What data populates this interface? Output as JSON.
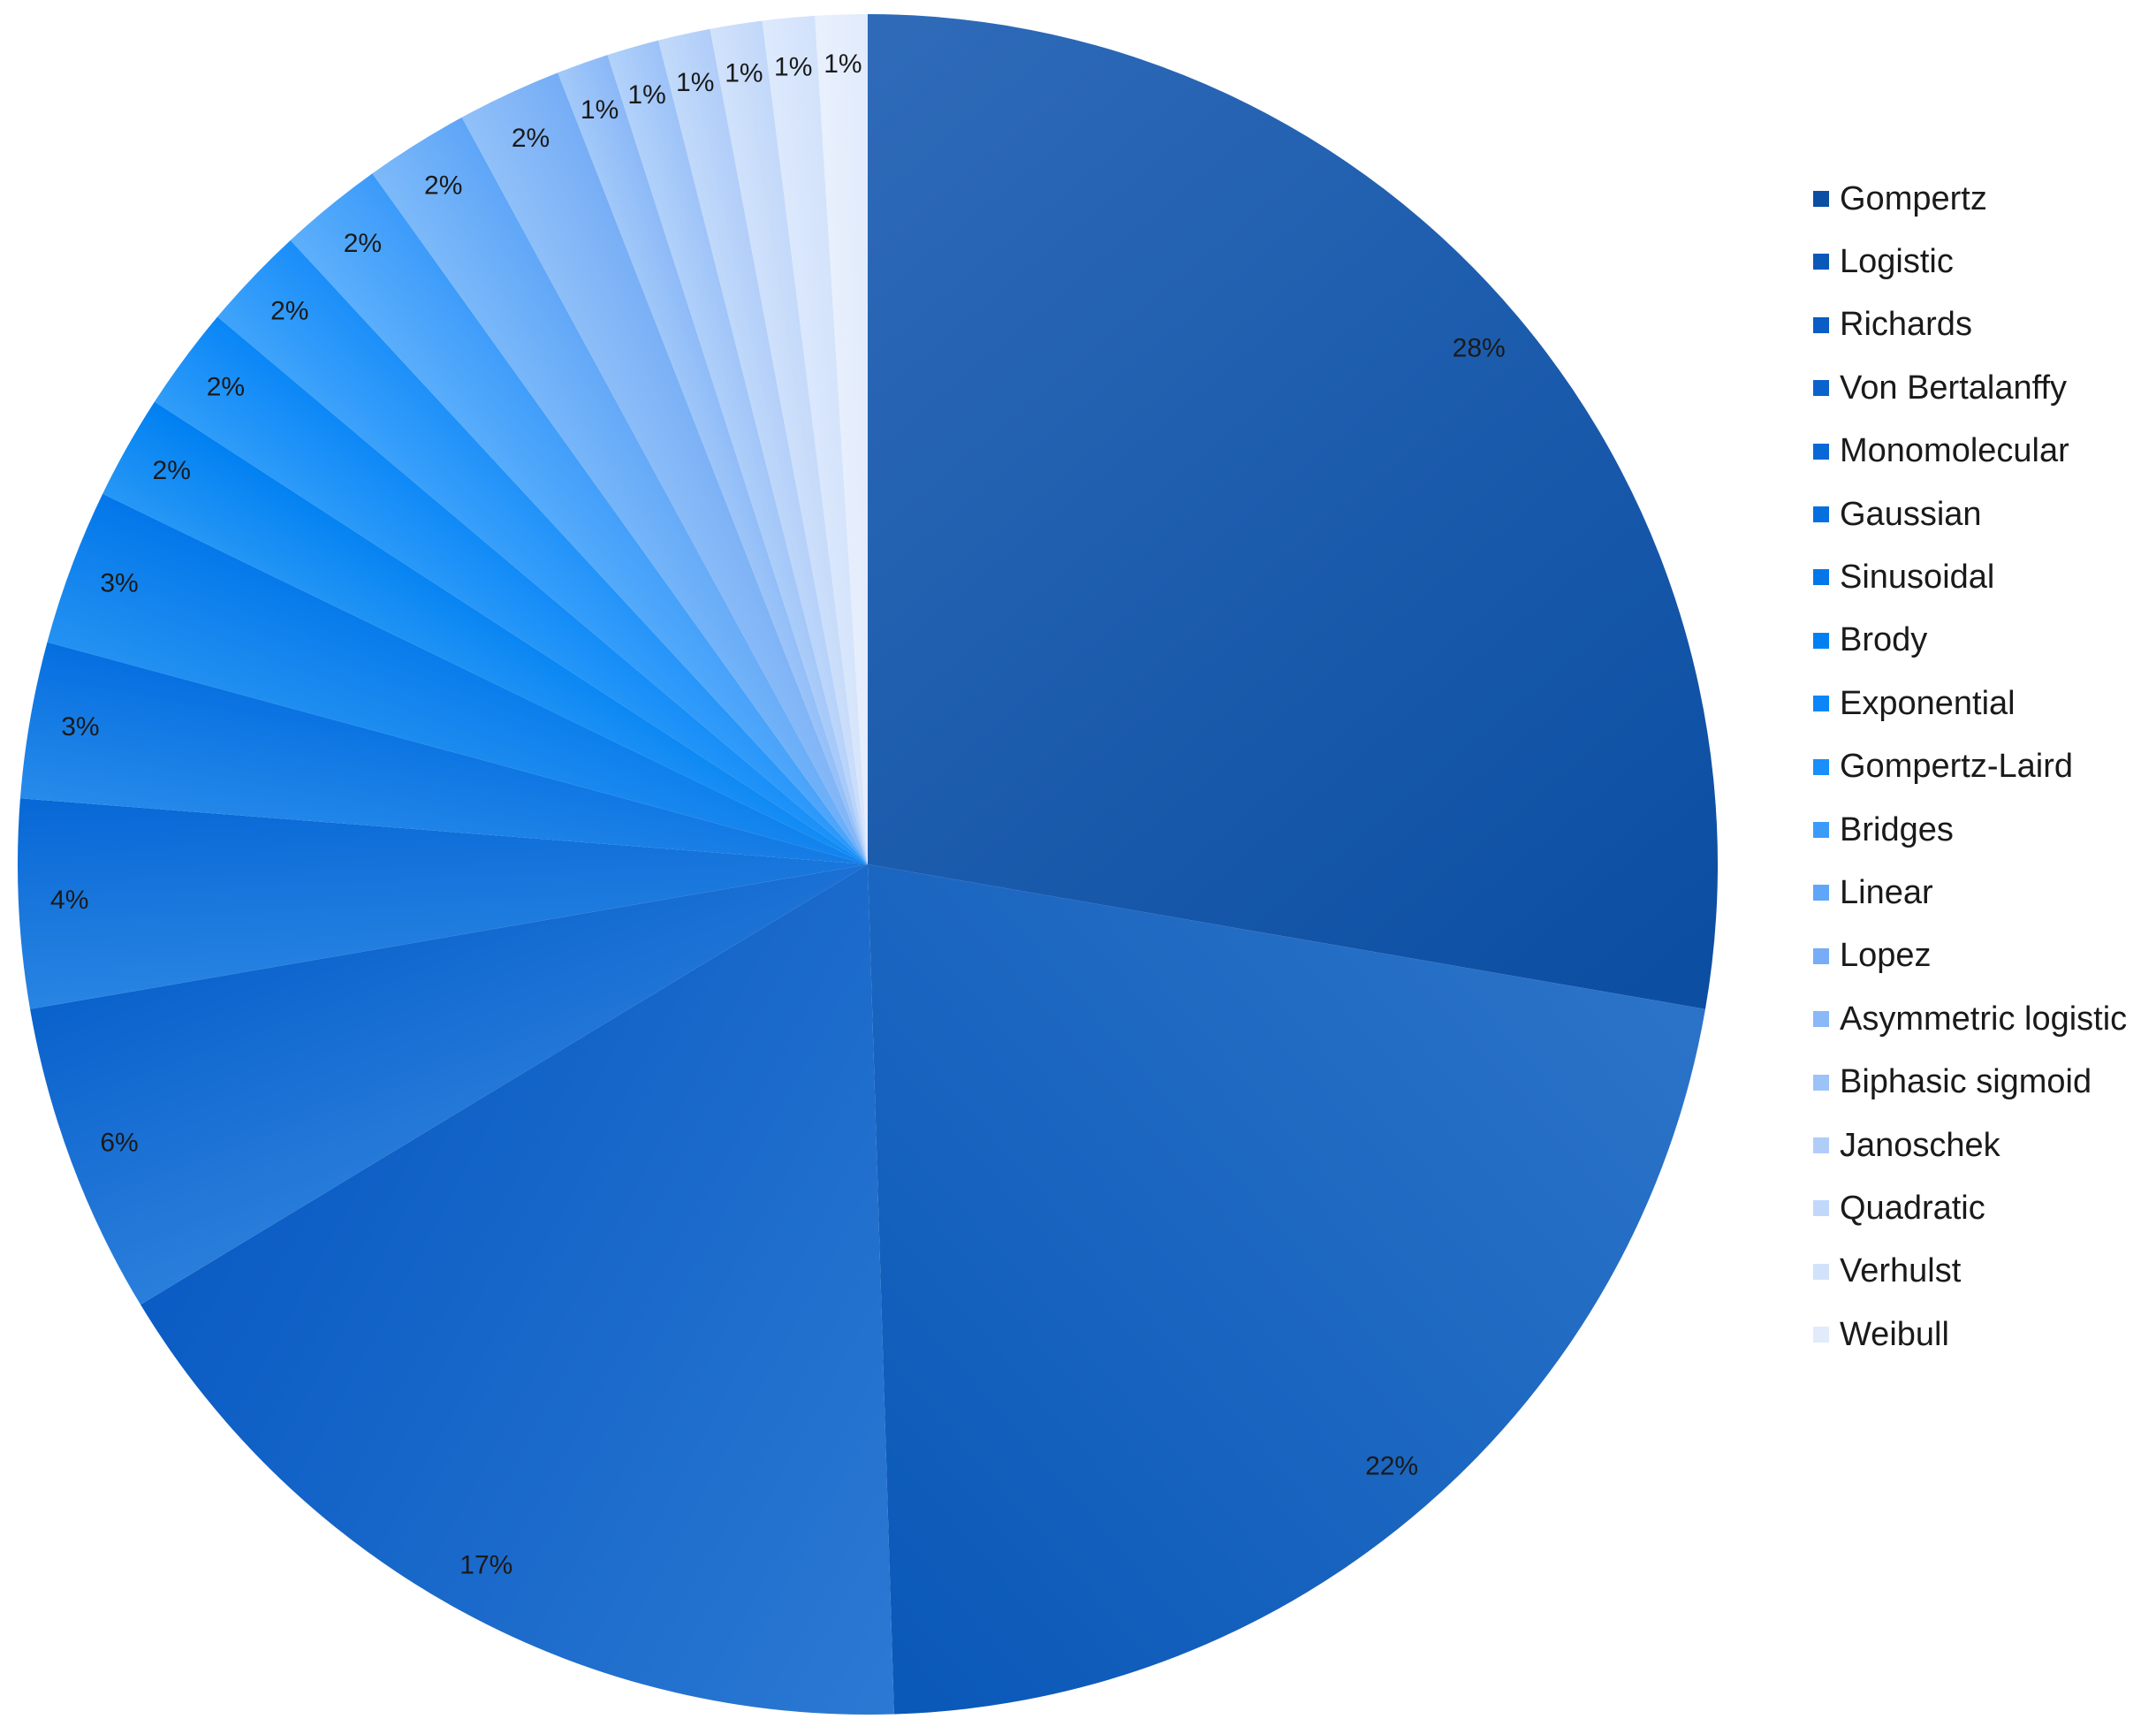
{
  "chart_data": {
    "type": "pie",
    "title": "",
    "categories": [
      "Gompertz",
      "Logistic",
      "Richards",
      "Von Bertalanffy",
      "Monomolecular",
      "Gaussian",
      "Sinusoidal",
      "Brody",
      "Exponential",
      "Gompertz-Laird",
      "Bridges",
      "Linear",
      "Lopez",
      "Asymmetric logistic",
      "Biphasic sigmoid",
      "Janoschek",
      "Quadratic",
      "Verhulst",
      "Weibull"
    ],
    "values": [
      28,
      22,
      17,
      6,
      4,
      3,
      3,
      2,
      2,
      2,
      2,
      2,
      2,
      1,
      1,
      1,
      1,
      1,
      1
    ],
    "data_labels": [
      "28%",
      "22%",
      "17%",
      "6%",
      "4%",
      "3%",
      "3%",
      "2%",
      "2%",
      "2%",
      "2%",
      "2%",
      "2%",
      "1%",
      "1%",
      "1%",
      "1%",
      "1%",
      "1%"
    ],
    "start_angle_deg": 0,
    "direction": "clockwise",
    "legend_position": "right",
    "colors": [
      "#0b4ea2",
      "#0a58b8",
      "#0b5cc4",
      "#0a62cc",
      "#0868d6",
      "#066fe0",
      "#0377ea",
      "#0080f2",
      "#0a86f7",
      "#1a8ef9",
      "#3c9bfa",
      "#5fa6f8",
      "#76adf6",
      "#8bb8f7",
      "#9dc2f8",
      "#b0cdf9",
      "#c2d8fa",
      "#d2e2fb",
      "#e1ebfc"
    ],
    "edge_colors": [
      "#2e6ab8",
      "#2b73c8",
      "#2a78d2",
      "#2a7edb",
      "#2884e2",
      "#268aea",
      "#2391f1",
      "#2697f5",
      "#2f9cf8",
      "#3fa3fa",
      "#5caffb",
      "#7cb9f9",
      "#90c0f8",
      "#a2c9f9",
      "#b2d2fa",
      "#c2dafa",
      "#d1e2fb",
      "#dde9fc",
      "#e9f0fd"
    ]
  }
}
